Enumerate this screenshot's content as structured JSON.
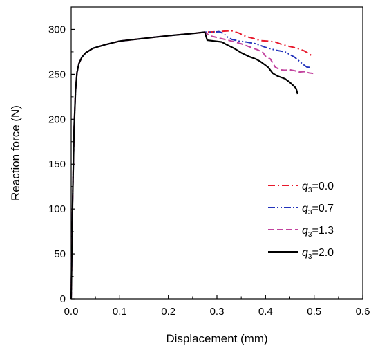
{
  "chart_data": {
    "type": "line",
    "title": "",
    "xlabel": "Displacement (mm)",
    "ylabel": "Reaction force (N)",
    "xlim": [
      0.0,
      0.6
    ],
    "ylim": [
      0,
      325
    ],
    "x_ticks": [
      "0.0",
      "0.1",
      "0.2",
      "0.3",
      "0.4",
      "0.5",
      "0.6"
    ],
    "y_ticks": [
      "0",
      "50",
      "100",
      "150",
      "200",
      "250",
      "300"
    ],
    "grid": false,
    "legend_position": "bottom-right",
    "series": [
      {
        "name": "q3=0.0",
        "legend": {
          "symbol": "q",
          "sub": "3",
          "value": "=0.0"
        },
        "color": "#e8192c",
        "dash": "dash-dot",
        "points": [
          [
            0,
            0
          ],
          [
            0.003,
            110
          ],
          [
            0.006,
            190
          ],
          [
            0.009,
            232
          ],
          [
            0.012,
            252
          ],
          [
            0.016,
            262
          ],
          [
            0.022,
            269
          ],
          [
            0.03,
            274
          ],
          [
            0.045,
            279
          ],
          [
            0.07,
            283
          ],
          [
            0.1,
            287
          ],
          [
            0.15,
            290
          ],
          [
            0.2,
            293
          ],
          [
            0.25,
            295.5
          ],
          [
            0.275,
            297
          ],
          [
            0.3,
            297.5
          ],
          [
            0.33,
            298.5
          ],
          [
            0.345,
            296
          ],
          [
            0.36,
            292
          ],
          [
            0.375,
            290
          ],
          [
            0.39,
            287.5
          ],
          [
            0.405,
            287
          ],
          [
            0.42,
            286
          ],
          [
            0.435,
            283
          ],
          [
            0.45,
            281
          ],
          [
            0.465,
            279
          ],
          [
            0.48,
            276
          ],
          [
            0.492,
            272
          ],
          [
            0.496,
            270
          ]
        ]
      },
      {
        "name": "q3=0.7",
        "legend": {
          "symbol": "q",
          "sub": "3",
          "value": "=0.7"
        },
        "color": "#2233bb",
        "dash": "dash-dot-dot",
        "points": [
          [
            0,
            0
          ],
          [
            0.003,
            110
          ],
          [
            0.006,
            190
          ],
          [
            0.009,
            232
          ],
          [
            0.012,
            252
          ],
          [
            0.016,
            262
          ],
          [
            0.022,
            269
          ],
          [
            0.03,
            274
          ],
          [
            0.045,
            279
          ],
          [
            0.07,
            283
          ],
          [
            0.1,
            287
          ],
          [
            0.15,
            290
          ],
          [
            0.2,
            293
          ],
          [
            0.25,
            295.5
          ],
          [
            0.275,
            297
          ],
          [
            0.29,
            297
          ],
          [
            0.305,
            297.5
          ],
          [
            0.315,
            295
          ],
          [
            0.32,
            292
          ],
          [
            0.33,
            289
          ],
          [
            0.345,
            287
          ],
          [
            0.36,
            286
          ],
          [
            0.38,
            284
          ],
          [
            0.4,
            280
          ],
          [
            0.42,
            277
          ],
          [
            0.44,
            275
          ],
          [
            0.46,
            269
          ],
          [
            0.475,
            262
          ],
          [
            0.485,
            258
          ],
          [
            0.495,
            257.5
          ]
        ]
      },
      {
        "name": "q3=1.3",
        "legend": {
          "symbol": "q",
          "sub": "3",
          "value": "=1.3"
        },
        "color": "#c2439e",
        "dash": "dashed",
        "points": [
          [
            0,
            0
          ],
          [
            0.003,
            110
          ],
          [
            0.006,
            190
          ],
          [
            0.009,
            232
          ],
          [
            0.012,
            252
          ],
          [
            0.016,
            262
          ],
          [
            0.022,
            269
          ],
          [
            0.03,
            274
          ],
          [
            0.045,
            279
          ],
          [
            0.07,
            283
          ],
          [
            0.1,
            287
          ],
          [
            0.15,
            290
          ],
          [
            0.2,
            293
          ],
          [
            0.25,
            295.5
          ],
          [
            0.275,
            297
          ],
          [
            0.285,
            293
          ],
          [
            0.3,
            291
          ],
          [
            0.315,
            289
          ],
          [
            0.33,
            287
          ],
          [
            0.35,
            284
          ],
          [
            0.37,
            280
          ],
          [
            0.385,
            277
          ],
          [
            0.395,
            274
          ],
          [
            0.4,
            270
          ],
          [
            0.41,
            267
          ],
          [
            0.42,
            258
          ],
          [
            0.43,
            255
          ],
          [
            0.44,
            254.5
          ],
          [
            0.45,
            255
          ],
          [
            0.46,
            254
          ],
          [
            0.47,
            252.5
          ],
          [
            0.48,
            253
          ],
          [
            0.49,
            251.5
          ],
          [
            0.498,
            251
          ]
        ]
      },
      {
        "name": "q3=2.0",
        "legend": {
          "symbol": "q",
          "sub": "3",
          "value": "=2.0"
        },
        "color": "#000000",
        "dash": "solid",
        "points": [
          [
            0,
            0
          ],
          [
            0.003,
            110
          ],
          [
            0.006,
            190
          ],
          [
            0.009,
            232
          ],
          [
            0.012,
            252
          ],
          [
            0.016,
            262
          ],
          [
            0.022,
            269
          ],
          [
            0.03,
            274
          ],
          [
            0.045,
            279
          ],
          [
            0.07,
            283
          ],
          [
            0.1,
            287
          ],
          [
            0.15,
            290
          ],
          [
            0.2,
            293
          ],
          [
            0.25,
            295.5
          ],
          [
            0.275,
            297
          ],
          [
            0.28,
            288
          ],
          [
            0.295,
            287
          ],
          [
            0.31,
            286
          ],
          [
            0.32,
            283
          ],
          [
            0.335,
            279
          ],
          [
            0.35,
            274
          ],
          [
            0.365,
            270
          ],
          [
            0.38,
            267
          ],
          [
            0.39,
            264
          ],
          [
            0.405,
            258
          ],
          [
            0.415,
            251
          ],
          [
            0.425,
            248
          ],
          [
            0.44,
            245
          ],
          [
            0.45,
            241
          ],
          [
            0.46,
            236
          ],
          [
            0.463,
            234
          ],
          [
            0.466,
            228
          ]
        ]
      }
    ]
  }
}
